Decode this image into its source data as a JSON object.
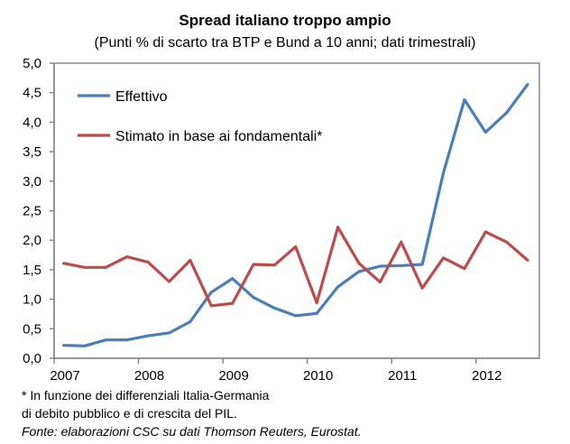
{
  "chart_data": {
    "type": "line",
    "title": "Spread italiano troppo ampio",
    "subtitle": "(Punti % di scarto tra BTP e Bund a 10 anni; dati trimestrali)",
    "x": [
      "2007Q1",
      "2007Q2",
      "2007Q3",
      "2007Q4",
      "2008Q1",
      "2008Q2",
      "2008Q3",
      "2008Q4",
      "2009Q1",
      "2009Q2",
      "2009Q3",
      "2009Q4",
      "2010Q1",
      "2010Q2",
      "2010Q3",
      "2010Q4",
      "2011Q1",
      "2011Q2",
      "2011Q3",
      "2011Q4",
      "2012Q1",
      "2012Q2",
      "2012Q3"
    ],
    "x_tick_labels": [
      "2007",
      "2008",
      "2009",
      "2010",
      "2011",
      "2012"
    ],
    "y_tick_labels": [
      "0,0",
      "0,5",
      "1,0",
      "1,5",
      "2,0",
      "2,5",
      "3,0",
      "3,5",
      "4,0",
      "4,5",
      "5,0"
    ],
    "ylim": [
      0,
      5
    ],
    "grid": false,
    "legend_placement": "top-left",
    "series": [
      {
        "name": "Effettivo",
        "color": "#4a7ebb",
        "values": [
          0.22,
          0.21,
          0.31,
          0.31,
          0.38,
          0.43,
          0.62,
          1.12,
          1.35,
          1.03,
          0.85,
          0.72,
          0.76,
          1.21,
          1.47,
          1.56,
          1.57,
          1.59,
          3.14,
          4.38,
          3.83,
          4.16,
          4.64
        ]
      },
      {
        "name": "Stimato in base ai fondamentali*",
        "color": "#be4b48",
        "values": [
          1.61,
          1.54,
          1.54,
          1.72,
          1.63,
          1.3,
          1.66,
          0.89,
          0.93,
          1.59,
          1.58,
          1.89,
          0.94,
          2.22,
          1.61,
          1.29,
          1.97,
          1.19,
          1.7,
          1.52,
          2.14,
          1.97,
          1.66
        ]
      }
    ]
  },
  "notes": {
    "line1": "* In funzione dei differenziali  Italia-Germania",
    "line2": "di debito pubblico e di crescita del PIL.",
    "source": "Fonte: elaborazioni  CSC su dati Thomson Reuters, Eurostat."
  }
}
